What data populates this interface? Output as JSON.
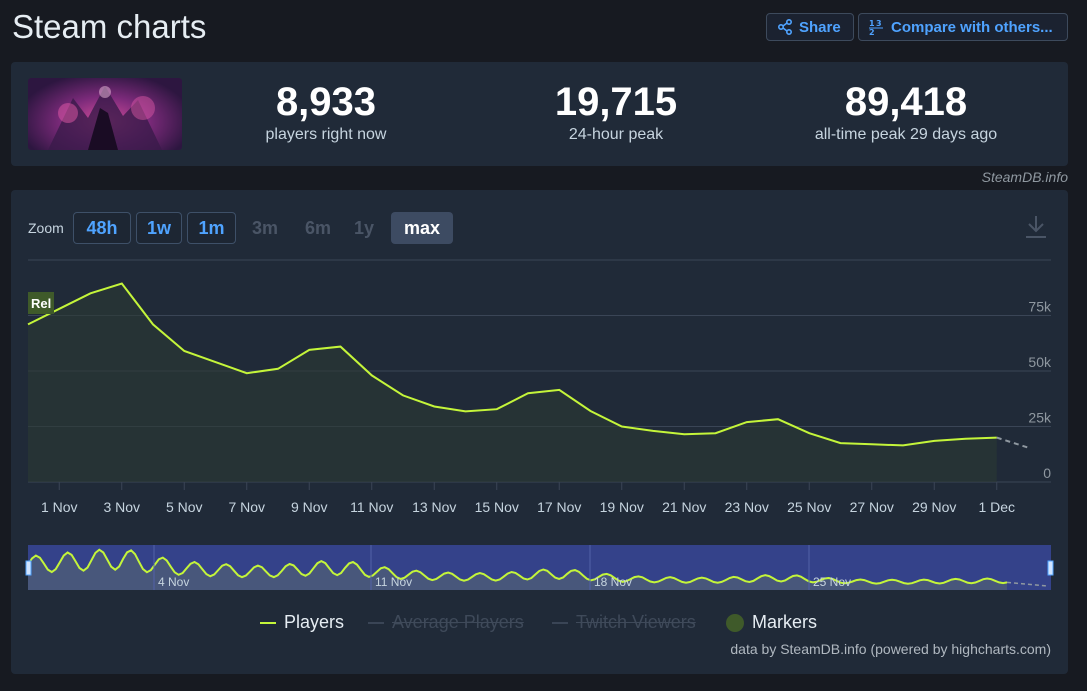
{
  "title": "Steam charts",
  "header": {
    "share_label": "Share",
    "compare_label": "Compare with others..."
  },
  "stats": {
    "now_value": "8,933",
    "now_label": "players right now",
    "peak24_value": "19,715",
    "peak24_label": "24-hour peak",
    "alltime_value": "89,418",
    "alltime_label": "all-time peak 29 days ago"
  },
  "credit_top": "SteamDB.info",
  "zoom": {
    "label": "Zoom",
    "buttons": [
      "48h",
      "1w",
      "1m",
      "3m",
      "6m",
      "1y",
      "max"
    ],
    "enabled": [
      "48h",
      "1w",
      "1m"
    ],
    "active": "max"
  },
  "colors": {
    "players": "#c4f53a",
    "grid": "#3a4556",
    "navigator_bg": "#34428a",
    "marker": "#3f5a2a"
  },
  "chart_data": {
    "type": "line",
    "x_start": "31 Oct",
    "x_end": "1 Dec",
    "x_tick_labels": [
      "1 Nov",
      "3 Nov",
      "5 Nov",
      "7 Nov",
      "9 Nov",
      "11 Nov",
      "13 Nov",
      "15 Nov",
      "17 Nov",
      "19 Nov",
      "21 Nov",
      "23 Nov",
      "25 Nov",
      "27 Nov",
      "29 Nov",
      "1 Dec"
    ],
    "y_tick_labels": [
      "0",
      "25k",
      "50k",
      "75k"
    ],
    "ylim": [
      0,
      100000
    ],
    "series": [
      {
        "name": "Players",
        "x": [
          "31 Oct",
          "1 Nov",
          "2 Nov",
          "3 Nov",
          "4 Nov",
          "5 Nov",
          "6 Nov",
          "7 Nov",
          "8 Nov",
          "9 Nov",
          "10 Nov",
          "11 Nov",
          "12 Nov",
          "13 Nov",
          "14 Nov",
          "15 Nov",
          "16 Nov",
          "17 Nov",
          "18 Nov",
          "19 Nov",
          "20 Nov",
          "21 Nov",
          "22 Nov",
          "23 Nov",
          "24 Nov",
          "25 Nov",
          "26 Nov",
          "27 Nov",
          "28 Nov",
          "29 Nov",
          "30 Nov",
          "1 Dec"
        ],
        "values": [
          71000,
          78000,
          85000,
          89400,
          71000,
          59000,
          54000,
          49000,
          51000,
          59500,
          61000,
          48000,
          39000,
          34000,
          31800,
          32800,
          40000,
          41500,
          32000,
          25000,
          23000,
          21500,
          22000,
          27000,
          28300,
          22000,
          17500,
          17000,
          16500,
          18500,
          19500,
          20000
        ]
      },
      {
        "name": "Average Players",
        "hidden": true
      },
      {
        "name": "Twitch Viewers",
        "hidden": true
      }
    ],
    "partial_tail": [
      20000,
      15500
    ],
    "markers": [
      {
        "date": "31 Oct",
        "label": "Rel"
      }
    ],
    "navigator_labels": [
      "4 Nov",
      "11 Nov",
      "18 Nov",
      "25 Nov"
    ],
    "legend": [
      "Players",
      "Average Players",
      "Twitch Viewers",
      "Markers"
    ],
    "legend_placement": "bottom-center"
  },
  "credit_bottom": "data by SteamDB.info (powered by highcharts.com)"
}
